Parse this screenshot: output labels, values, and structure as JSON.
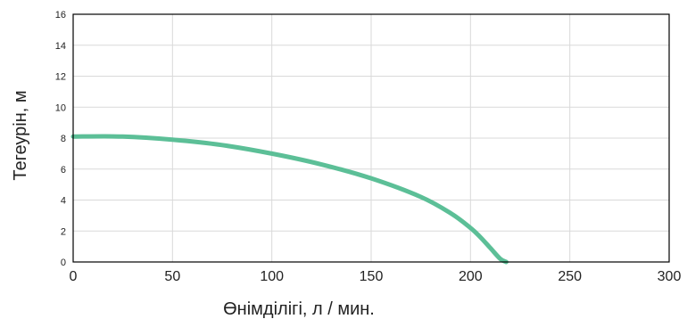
{
  "chart_data": {
    "type": "line",
    "title": "",
    "xlabel": "Өнімділігі, л / мин.",
    "ylabel": "Тегеурін, м",
    "xlim": [
      0,
      300
    ],
    "ylim": [
      0,
      16
    ],
    "xticks": [
      0,
      50,
      100,
      150,
      200,
      250,
      300
    ],
    "yticks": [
      0,
      2,
      4,
      6,
      8,
      10,
      12,
      14,
      16
    ],
    "grid": true,
    "legend": "none",
    "series": [
      {
        "color": "#5cbf97",
        "x": [
          0,
          25,
          50,
          75,
          100,
          125,
          150,
          175,
          190,
          200,
          205,
          210,
          215,
          218
        ],
        "y": [
          8.1,
          8.1,
          7.9,
          7.55,
          7.0,
          6.3,
          5.4,
          4.2,
          3.15,
          2.2,
          1.6,
          0.9,
          0.2,
          0.0
        ]
      }
    ]
  }
}
